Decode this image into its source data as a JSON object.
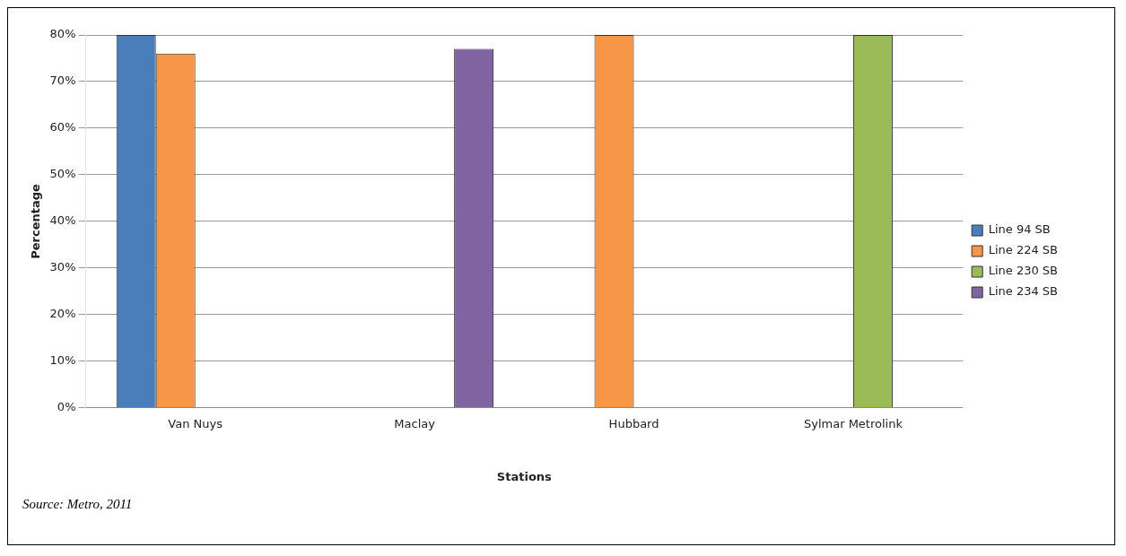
{
  "chart_data": {
    "type": "bar",
    "xlabel": "Stations",
    "ylabel": "Percentage",
    "categories": [
      "Van Nuys",
      "Maclay",
      "Hubbard",
      "Sylmar Metrolink"
    ],
    "series": [
      {
        "name": "Line 94 SB",
        "color": "#4a7ebb",
        "values": [
          80,
          null,
          null,
          null
        ]
      },
      {
        "name": "Line 224 SB",
        "color": "#f79646",
        "values": [
          76,
          null,
          80,
          null
        ]
      },
      {
        "name": "Line 230 SB",
        "color": "#9bbb59",
        "values": [
          null,
          null,
          null,
          80
        ]
      },
      {
        "name": "Line 234 SB",
        "color": "#8064a2",
        "values": [
          null,
          77,
          null,
          null
        ]
      }
    ],
    "ylim": [
      0,
      80
    ],
    "yticks": [
      {
        "value": 0,
        "label": "0%"
      },
      {
        "value": 10,
        "label": "10%"
      },
      {
        "value": 20,
        "label": "20%"
      },
      {
        "value": 30,
        "label": "30%"
      },
      {
        "value": 40,
        "label": "40%"
      },
      {
        "value": 50,
        "label": "50%"
      },
      {
        "value": 60,
        "label": "60%"
      },
      {
        "value": 70,
        "label": "70%"
      },
      {
        "value": 80,
        "label": "80%"
      }
    ],
    "grid": "y",
    "legend": "right",
    "annotations": [
      "Source: Metro, 2011"
    ]
  }
}
